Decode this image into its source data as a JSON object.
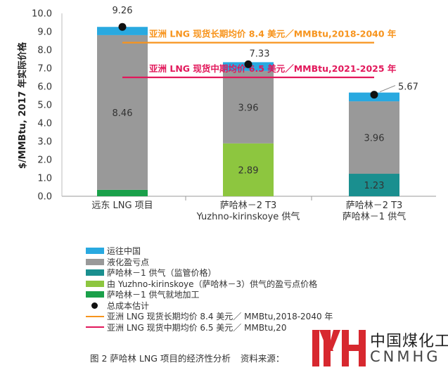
{
  "chart_data": {
    "type": "bar",
    "stacked": true,
    "ylabel": "$/MMBtu, 2017 年实际价格",
    "ylim": [
      0,
      10
    ],
    "yticks": [
      "0.0",
      "1.0",
      "2.0",
      "3.0",
      "4.0",
      "5.0",
      "6.0",
      "7.0",
      "8.0",
      "9.0",
      "10.0"
    ],
    "categories": [
      [
        "远东 LNG 项目"
      ],
      [
        "萨哈林－2 T3",
        "Yuzhno-kirinskoye 供气"
      ],
      [
        "萨哈林－2 T3",
        "萨哈林－1 供气"
      ]
    ],
    "series": [
      {
        "name": "萨哈林－1 供气就地加工",
        "color": "#1aa04a",
        "values": [
          0.35,
          0,
          0
        ]
      },
      {
        "name": "由 Yuzhno-kirinskoye（萨哈林－3）供气的盈亏点价格",
        "color": "#8dc63f",
        "values": [
          0,
          2.89,
          0
        ]
      },
      {
        "name": "萨哈林－1 供气（监管价格）",
        "color": "#1a8f8f",
        "values": [
          0,
          0,
          1.23
        ]
      },
      {
        "name": "液化盈亏点",
        "color": "#999999",
        "values": [
          8.46,
          3.96,
          3.96
        ]
      },
      {
        "name": "运往中国",
        "color": "#29a9e0",
        "values": [
          0.45,
          0.48,
          0.48
        ]
      }
    ],
    "segment_labels": [
      [
        "",
        "",
        "",
        "8.46",
        ""
      ],
      [
        "",
        "2.89",
        "",
        "3.96",
        ""
      ],
      [
        "",
        "",
        "1.23",
        "3.96",
        ""
      ]
    ],
    "total_cost": {
      "name": "总成本估计",
      "values": [
        9.26,
        7.33,
        5.67
      ],
      "labels": [
        "9.26",
        "7.33",
        "5.67"
      ]
    },
    "reference_lines": [
      {
        "name": "亚洲 LNG 现货长期均价 8.4 美元／MMBtu,2018-2040 年",
        "value": 8.4,
        "color": "#f7941d",
        "label": "亚洲 LNG 现货长期均价 8.4 美元／MMBtu,2018-2040 年"
      },
      {
        "name": "亚洲 LNG 现货中期均价 6.5 美元／MMBtu,2021-2025 年",
        "value": 6.5,
        "color": "#e2185b",
        "label": "亚洲 LNG 现货中期均价 6.5 美元／MMBtu,2021-2025 年"
      }
    ],
    "grid": false,
    "legend_position": "bottom"
  },
  "legend": [
    {
      "kind": "swatch",
      "color": "#29a9e0",
      "label": "运往中国"
    },
    {
      "kind": "swatch",
      "color": "#999999",
      "label": "液化盈亏点"
    },
    {
      "kind": "swatch",
      "color": "#1a8f8f",
      "label": "萨哈林－1 供气（监管价格）"
    },
    {
      "kind": "swatch",
      "color": "#8dc63f",
      "label": "由 Yuzhno-kirinskoye（萨哈林－3）供气的盈亏点价格"
    },
    {
      "kind": "swatch",
      "color": "#1aa04a",
      "label": "萨哈林－1 供气就地加工"
    },
    {
      "kind": "dot",
      "color": "#111111",
      "label": "总成本估计"
    },
    {
      "kind": "line",
      "color": "#f7941d",
      "label": "亚洲 LNG 现货长期均价 8.4 美元／ MMBtu,2018-2040 年"
    },
    {
      "kind": "line",
      "color": "#e2185b",
      "label": "亚洲 LNG 现货中期均价 6.5 美元／ MMBtu,20"
    }
  ],
  "caption": {
    "title": "图 2 萨哈林 LNG 项目的经济性分析",
    "source": "资料来源："
  },
  "logo": {
    "cn": "中国煤化工",
    "en": "CNMHG",
    "mark_color": "#d7282f"
  }
}
